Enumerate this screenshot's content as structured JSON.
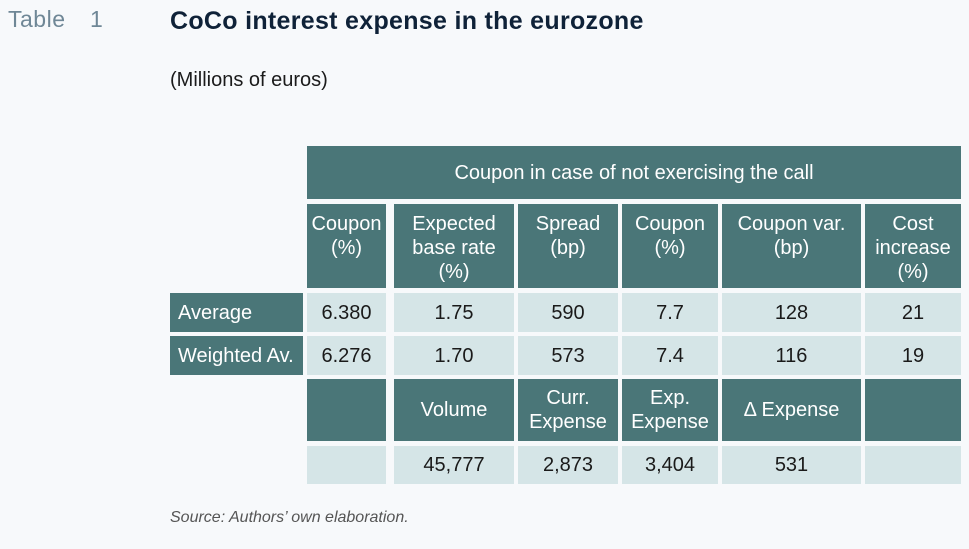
{
  "header": {
    "label": "Table",
    "number": "1",
    "title": "CoCo interest expense in the eurozone",
    "subtitle": "(Millions of euros)"
  },
  "table": {
    "group_header": "Coupon in case of not exercising the call",
    "columns": [
      "Coupon\n(%)",
      "Expected\nbase rate\n(%)",
      "Spread\n(bp)",
      "Coupon\n(%)",
      "Coupon var.\n(bp)",
      "Cost\nincrease\n(%)"
    ],
    "rows": [
      {
        "label": "Average",
        "values": [
          "6.380",
          "1.75",
          "590",
          "7.7",
          "128",
          "21"
        ]
      },
      {
        "label": "Weighted Av.",
        "values": [
          "6.276",
          "1.70",
          "573",
          "7.4",
          "116",
          "19"
        ]
      }
    ],
    "summary_headers": [
      "",
      "Volume",
      "Curr.\nExpense",
      "Exp.\nExpense",
      "Δ Expense",
      ""
    ],
    "summary_values": [
      "",
      "45,777",
      "2,873",
      "3,404",
      "531",
      ""
    ]
  },
  "footer": {
    "source": "Source: Authors’ own elaboration."
  }
}
